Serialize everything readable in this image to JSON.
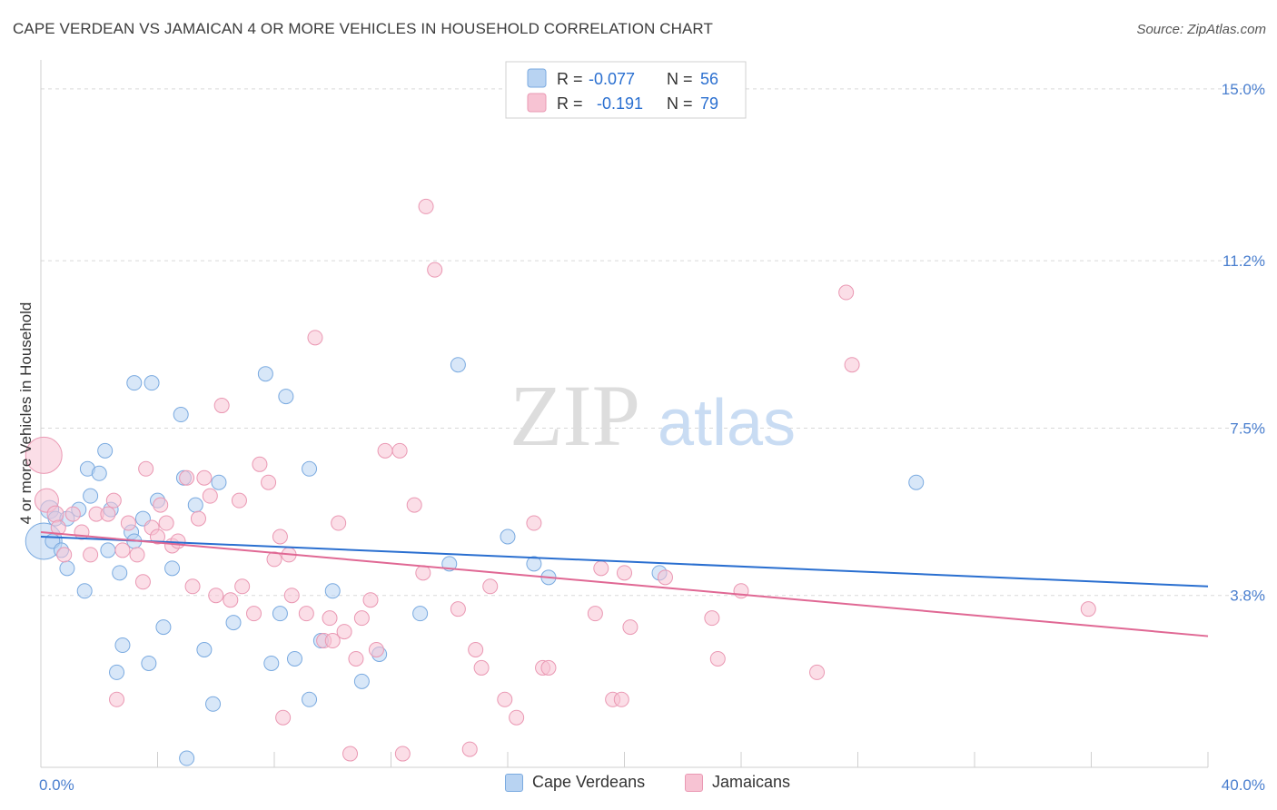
{
  "title": "CAPE VERDEAN VS JAMAICAN 4 OR MORE VEHICLES IN HOUSEHOLD CORRELATION CHART",
  "source": "Source: ZipAtlas.com",
  "watermark": {
    "zip": "ZIP",
    "atlas": "atlas"
  },
  "legend_top": {
    "rows": [
      {
        "r_label": "R = ",
        "r_value": "-0.077",
        "n_label": "N = ",
        "n_value": "56"
      },
      {
        "r_label": "R = ",
        "r_value": "-0.191",
        "n_label": "N = ",
        "n_value": "79"
      }
    ]
  },
  "legend_bottom": {
    "items": [
      "Cape Verdeans",
      "Jamaicans"
    ]
  },
  "colors": {
    "blue_fill": "#b8d3f2",
    "blue_stroke": "#7aaae0",
    "blue_line": "#2a6fd0",
    "pink_fill": "#f7c3d3",
    "pink_stroke": "#ea98b3",
    "pink_line": "#e06894",
    "tick_label": "#4a7fcf",
    "grid": "#d9d9d9"
  },
  "chart_data": {
    "type": "scatter",
    "title": "CAPE VERDEAN VS JAMAICAN 4 OR MORE VEHICLES IN HOUSEHOLD CORRELATION CHART",
    "xlabel": "",
    "ylabel": "4 or more Vehicles in Household",
    "xlim": [
      0,
      40
    ],
    "ylim": [
      0,
      15.4
    ],
    "x_tick_labels": [
      "0.0%",
      "40.0%"
    ],
    "y_ticks": [
      3.8,
      7.5,
      11.2,
      15.0
    ],
    "y_tick_labels": [
      "3.8%",
      "7.5%",
      "11.2%",
      "15.0%"
    ],
    "grid": true,
    "legend_position": "top-center",
    "series": [
      {
        "name": "Cape Verdeans",
        "r": -0.077,
        "n": 56,
        "trend": {
          "x": [
            0,
            40
          ],
          "y": [
            5.1,
            4.0
          ]
        },
        "points": [
          [
            0.1,
            5.0,
            20
          ],
          [
            0.3,
            5.7,
            10
          ],
          [
            0.4,
            5.0,
            8
          ],
          [
            0.5,
            5.5,
            8
          ],
          [
            0.7,
            4.8,
            8
          ],
          [
            0.9,
            4.4,
            8
          ],
          [
            0.9,
            5.5,
            8
          ],
          [
            1.3,
            5.7,
            8
          ],
          [
            1.5,
            3.9,
            8
          ],
          [
            1.6,
            6.6,
            8
          ],
          [
            1.7,
            6.0,
            8
          ],
          [
            2.0,
            6.5,
            8
          ],
          [
            2.2,
            7.0,
            8
          ],
          [
            2.3,
            4.8,
            8
          ],
          [
            2.4,
            5.7,
            8
          ],
          [
            2.6,
            2.1,
            8
          ],
          [
            2.7,
            4.3,
            8
          ],
          [
            2.8,
            2.7,
            8
          ],
          [
            3.1,
            5.2,
            8
          ],
          [
            3.2,
            8.5,
            8
          ],
          [
            3.2,
            5.0,
            8
          ],
          [
            3.5,
            5.5,
            8
          ],
          [
            3.7,
            2.3,
            8
          ],
          [
            3.8,
            8.5,
            8
          ],
          [
            4.0,
            5.9,
            8
          ],
          [
            4.2,
            3.1,
            8
          ],
          [
            4.5,
            4.4,
            8
          ],
          [
            4.8,
            7.8,
            8
          ],
          [
            4.9,
            6.4,
            8
          ],
          [
            5.0,
            0.2,
            8
          ],
          [
            5.3,
            5.8,
            8
          ],
          [
            5.6,
            2.6,
            8
          ],
          [
            5.9,
            1.4,
            8
          ],
          [
            6.1,
            6.3,
            8
          ],
          [
            6.6,
            3.2,
            8
          ],
          [
            7.7,
            8.7,
            8
          ],
          [
            7.9,
            2.3,
            8
          ],
          [
            8.2,
            3.4,
            8
          ],
          [
            8.4,
            8.2,
            8
          ],
          [
            8.7,
            2.4,
            8
          ],
          [
            9.2,
            6.6,
            8
          ],
          [
            9.2,
            1.5,
            8
          ],
          [
            9.6,
            2.8,
            8
          ],
          [
            10.0,
            3.9,
            8
          ],
          [
            11.0,
            1.9,
            8
          ],
          [
            11.6,
            2.5,
            8
          ],
          [
            13.0,
            3.4,
            8
          ],
          [
            14.0,
            4.5,
            8
          ],
          [
            14.3,
            8.9,
            8
          ],
          [
            16.0,
            5.1,
            8
          ],
          [
            16.9,
            4.5,
            8
          ],
          [
            17.4,
            4.2,
            8
          ],
          [
            21.2,
            4.3,
            8
          ],
          [
            30.0,
            6.3,
            8
          ]
        ]
      },
      {
        "name": "Jamaicans",
        "r": -0.191,
        "n": 79,
        "trend": {
          "x": [
            0,
            40
          ],
          "y": [
            5.2,
            2.9
          ]
        },
        "points": [
          [
            0.1,
            6.9,
            20
          ],
          [
            0.2,
            5.9,
            13
          ],
          [
            0.5,
            5.6,
            9
          ],
          [
            0.6,
            5.3,
            8
          ],
          [
            0.8,
            4.7,
            8
          ],
          [
            1.1,
            5.6,
            8
          ],
          [
            1.4,
            5.2,
            8
          ],
          [
            1.7,
            4.7,
            8
          ],
          [
            1.9,
            5.6,
            8
          ],
          [
            2.3,
            5.6,
            8
          ],
          [
            2.5,
            5.9,
            8
          ],
          [
            2.6,
            1.5,
            8
          ],
          [
            2.8,
            4.8,
            8
          ],
          [
            3.0,
            5.4,
            8
          ],
          [
            3.3,
            4.7,
            8
          ],
          [
            3.5,
            4.1,
            8
          ],
          [
            3.6,
            6.6,
            8
          ],
          [
            3.8,
            5.3,
            8
          ],
          [
            4.0,
            5.1,
            8
          ],
          [
            4.1,
            5.8,
            8
          ],
          [
            4.3,
            5.4,
            8
          ],
          [
            4.5,
            4.9,
            8
          ],
          [
            4.7,
            5.0,
            8
          ],
          [
            5.0,
            6.4,
            8
          ],
          [
            5.2,
            4.0,
            8
          ],
          [
            5.4,
            5.5,
            8
          ],
          [
            5.6,
            6.4,
            8
          ],
          [
            5.8,
            6.0,
            8
          ],
          [
            6.0,
            3.8,
            8
          ],
          [
            6.2,
            8.0,
            8
          ],
          [
            6.5,
            3.7,
            8
          ],
          [
            6.8,
            5.9,
            8
          ],
          [
            6.9,
            4.0,
            8
          ],
          [
            7.3,
            3.4,
            8
          ],
          [
            7.5,
            6.7,
            8
          ],
          [
            7.8,
            6.3,
            8
          ],
          [
            8.0,
            4.6,
            8
          ],
          [
            8.2,
            5.1,
            8
          ],
          [
            8.3,
            1.1,
            8
          ],
          [
            8.5,
            4.7,
            8
          ],
          [
            8.6,
            3.8,
            8
          ],
          [
            9.1,
            3.4,
            8
          ],
          [
            9.4,
            9.5,
            8
          ],
          [
            9.7,
            2.8,
            8
          ],
          [
            9.9,
            3.3,
            8
          ],
          [
            10.0,
            2.8,
            8
          ],
          [
            10.2,
            5.4,
            8
          ],
          [
            10.4,
            3.0,
            8
          ],
          [
            10.6,
            0.3,
            8
          ],
          [
            10.8,
            2.4,
            8
          ],
          [
            11.0,
            3.3,
            8
          ],
          [
            11.3,
            3.7,
            8
          ],
          [
            11.5,
            2.6,
            8
          ],
          [
            11.8,
            7.0,
            8
          ],
          [
            12.3,
            7.0,
            8
          ],
          [
            12.4,
            0.3,
            8
          ],
          [
            12.8,
            5.8,
            8
          ],
          [
            13.1,
            4.3,
            8
          ],
          [
            13.2,
            12.4,
            8
          ],
          [
            13.5,
            11.0,
            8
          ],
          [
            14.3,
            3.5,
            8
          ],
          [
            14.7,
            0.4,
            8
          ],
          [
            14.9,
            2.6,
            8
          ],
          [
            15.1,
            2.2,
            8
          ],
          [
            15.4,
            4.0,
            8
          ],
          [
            15.9,
            1.5,
            8
          ],
          [
            16.3,
            1.1,
            8
          ],
          [
            16.9,
            5.4,
            8
          ],
          [
            17.2,
            2.2,
            8
          ],
          [
            17.4,
            2.2,
            8
          ],
          [
            19.0,
            3.4,
            8
          ],
          [
            19.2,
            4.4,
            8
          ],
          [
            19.6,
            1.5,
            8
          ],
          [
            19.9,
            1.5,
            8
          ],
          [
            20.0,
            4.3,
            8
          ],
          [
            20.2,
            3.1,
            8
          ],
          [
            21.4,
            4.2,
            8
          ],
          [
            23.0,
            3.3,
            8
          ],
          [
            23.2,
            2.4,
            8
          ],
          [
            24.0,
            3.9,
            8
          ],
          [
            26.6,
            2.1,
            8
          ],
          [
            27.6,
            10.5,
            8
          ],
          [
            27.8,
            8.9,
            8
          ],
          [
            35.9,
            3.5,
            8
          ]
        ]
      }
    ]
  }
}
